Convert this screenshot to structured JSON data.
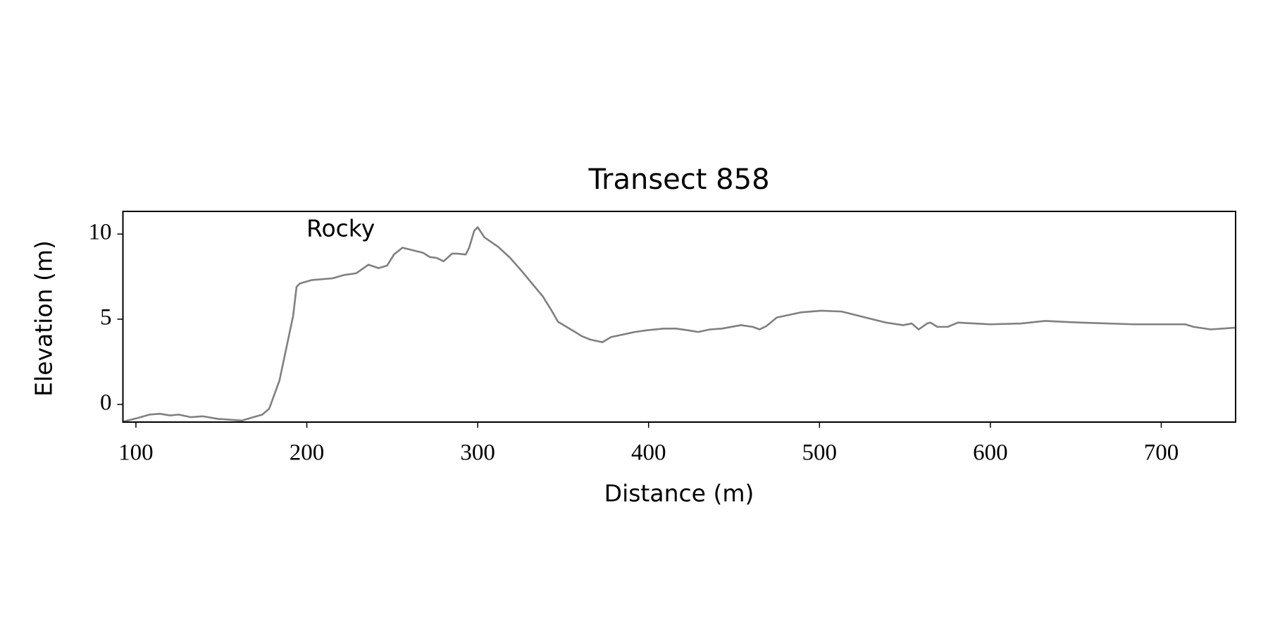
{
  "chart_data": {
    "type": "line",
    "title": "Transect 858",
    "xlabel": "Distance (m)",
    "ylabel": "Elevation (m)",
    "annotation": "Rocky",
    "x": [
      93,
      101,
      108,
      114,
      120,
      125,
      132,
      139,
      148,
      162,
      167,
      174,
      178,
      184,
      188,
      192,
      194,
      196,
      203,
      215,
      222,
      229,
      236,
      242,
      247,
      251,
      256,
      262,
      268,
      272,
      276,
      280,
      285,
      288,
      293,
      295,
      298,
      300,
      304,
      312,
      319,
      326,
      333,
      338,
      343,
      347,
      352,
      357,
      361,
      366,
      373,
      378,
      385,
      392,
      399,
      409,
      416,
      423,
      429,
      436,
      443,
      454,
      461,
      465,
      469,
      475,
      489,
      501,
      513,
      527,
      539,
      549,
      554,
      558,
      563,
      565,
      569,
      575,
      581,
      600,
      618,
      632,
      653,
      684,
      714,
      719,
      729,
      743
    ],
    "series": [
      {
        "color": "#808080",
        "values": [
          -1.0,
          -0.8,
          -0.6,
          -0.55,
          -0.65,
          -0.6,
          -0.75,
          -0.7,
          -0.85,
          -0.95,
          -0.8,
          -0.6,
          -0.25,
          1.4,
          3.3,
          5.2,
          6.9,
          7.1,
          7.3,
          7.4,
          7.6,
          7.7,
          8.2,
          8.0,
          8.15,
          8.8,
          9.2,
          9.05,
          8.9,
          8.65,
          8.6,
          8.4,
          8.85,
          8.85,
          8.8,
          9.2,
          10.2,
          10.4,
          9.8,
          9.25,
          8.6,
          7.8,
          6.95,
          6.35,
          5.55,
          4.85,
          4.55,
          4.25,
          4.0,
          3.8,
          3.65,
          3.95,
          4.1,
          4.25,
          4.35,
          4.45,
          4.45,
          4.35,
          4.25,
          4.4,
          4.45,
          4.65,
          4.55,
          4.4,
          4.6,
          5.1,
          5.4,
          5.5,
          5.45,
          5.1,
          4.8,
          4.65,
          4.75,
          4.4,
          4.75,
          4.8,
          4.55,
          4.55,
          4.8,
          4.7,
          4.75,
          4.9,
          4.8,
          4.7,
          4.7,
          4.55,
          4.4,
          4.5
        ]
      }
    ],
    "xlim": [
      92.4,
      743.5
    ],
    "ylim": [
      -1.04,
      11.33
    ],
    "xticks": [
      100,
      200,
      300,
      400,
      500,
      600,
      700
    ],
    "yticks": [
      0,
      5,
      10
    ]
  }
}
